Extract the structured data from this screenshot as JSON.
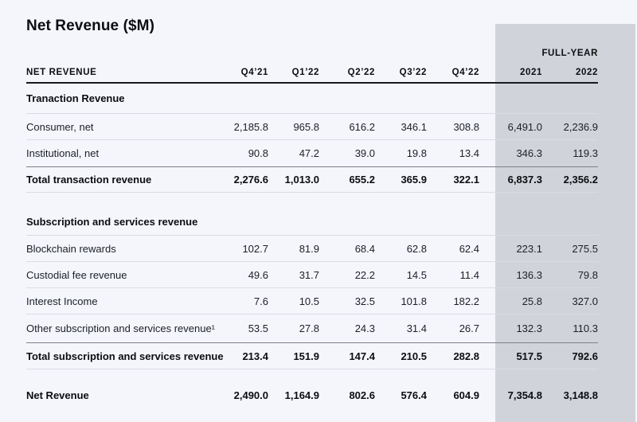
{
  "title": "Net Revenue ($M)",
  "colors": {
    "background": "#f4f6fc",
    "full_year_band": "#d0d3d9",
    "text": "#0b0d10",
    "row_divider": "#d9dce2",
    "total_divider": "#7c8089",
    "header_underline": "#17191d"
  },
  "table": {
    "header_label": "NET REVENUE",
    "full_year_label": "FULL-YEAR",
    "columns": [
      "Q4’21",
      "Q1’22",
      "Q2’22",
      "Q3’22",
      "Q4’22",
      "2021",
      "2022"
    ],
    "rows": [
      {
        "type": "section",
        "label": "Tranaction Revenue",
        "values": []
      },
      {
        "type": "data",
        "label": "Consumer, net",
        "values": [
          "2,185.8",
          "965.8",
          "616.2",
          "346.1",
          "308.8",
          "6,491.0",
          "2,236.9"
        ]
      },
      {
        "type": "data",
        "label": "Institutional, net",
        "values": [
          "90.8",
          "47.2",
          "39.0",
          "19.8",
          "13.4",
          "346.3",
          "119.3"
        ]
      },
      {
        "type": "total",
        "label": "Total transaction revenue",
        "values": [
          "2,276.6",
          "1,013.0",
          "655.2",
          "365.9",
          "322.1",
          "6,837.3",
          "2,356.2"
        ]
      },
      {
        "type": "gap",
        "label": "",
        "values": []
      },
      {
        "type": "section",
        "label": "Subscription and services revenue",
        "values": []
      },
      {
        "type": "data",
        "label": "Blockchain rewards",
        "values": [
          "102.7",
          "81.9",
          "68.4",
          "62.8",
          "62.4",
          "223.1",
          "275.5"
        ]
      },
      {
        "type": "data",
        "label": "Custodial fee revenue",
        "values": [
          "49.6",
          "31.7",
          "22.2",
          "14.5",
          "11.4",
          "136.3",
          "79.8"
        ]
      },
      {
        "type": "data",
        "label": "Interest Income",
        "values": [
          "7.6",
          "10.5",
          "32.5",
          "101.8",
          "182.2",
          "25.8",
          "327.0"
        ]
      },
      {
        "type": "data",
        "label": "Other subscription and services revenue¹",
        "values": [
          "53.5",
          "27.8",
          "24.3",
          "31.4",
          "26.7",
          "132.3",
          "110.3"
        ]
      },
      {
        "type": "total",
        "label": "Total subscription and services revenue",
        "values": [
          "213.4",
          "151.9",
          "147.4",
          "210.5",
          "282.8",
          "517.5",
          "792.6"
        ]
      },
      {
        "type": "gap",
        "label": "",
        "values": []
      },
      {
        "type": "grand",
        "label": "Net Revenue",
        "values": [
          "2,490.0",
          "1,164.9",
          "802.6",
          "576.4",
          "604.9",
          "7,354.8",
          "3,148.8"
        ]
      }
    ]
  },
  "chart_data": {
    "type": "table",
    "title": "Net Revenue ($M)",
    "columns": [
      "Q4'21",
      "Q1'22",
      "Q2'22",
      "Q3'22",
      "Q4'22",
      "FY 2021",
      "FY 2022"
    ],
    "rows": [
      {
        "section": "Tranaction Revenue",
        "label": "Consumer, net",
        "values": [
          2185.8,
          965.8,
          616.2,
          346.1,
          308.8,
          6491.0,
          2236.9
        ]
      },
      {
        "section": "Tranaction Revenue",
        "label": "Institutional, net",
        "values": [
          90.8,
          47.2,
          39.0,
          19.8,
          13.4,
          346.3,
          119.3
        ]
      },
      {
        "section": "Tranaction Revenue",
        "label": "Total transaction revenue",
        "values": [
          2276.6,
          1013.0,
          655.2,
          365.9,
          322.1,
          6837.3,
          2356.2
        ]
      },
      {
        "section": "Subscription and services revenue",
        "label": "Blockchain rewards",
        "values": [
          102.7,
          81.9,
          68.4,
          62.8,
          62.4,
          223.1,
          275.5
        ]
      },
      {
        "section": "Subscription and services revenue",
        "label": "Custodial fee revenue",
        "values": [
          49.6,
          31.7,
          22.2,
          14.5,
          11.4,
          136.3,
          79.8
        ]
      },
      {
        "section": "Subscription and services revenue",
        "label": "Interest Income",
        "values": [
          7.6,
          10.5,
          32.5,
          101.8,
          182.2,
          25.8,
          327.0
        ]
      },
      {
        "section": "Subscription and services revenue",
        "label": "Other subscription and services revenue (1)",
        "values": [
          53.5,
          27.8,
          24.3,
          31.4,
          26.7,
          132.3,
          110.3
        ]
      },
      {
        "section": "Subscription and services revenue",
        "label": "Total subscription and services revenue",
        "values": [
          213.4,
          151.9,
          147.4,
          210.5,
          282.8,
          517.5,
          792.6
        ]
      },
      {
        "section": "",
        "label": "Net Revenue",
        "values": [
          2490.0,
          1164.9,
          802.6,
          576.4,
          604.9,
          7354.8,
          3148.8
        ]
      }
    ]
  }
}
